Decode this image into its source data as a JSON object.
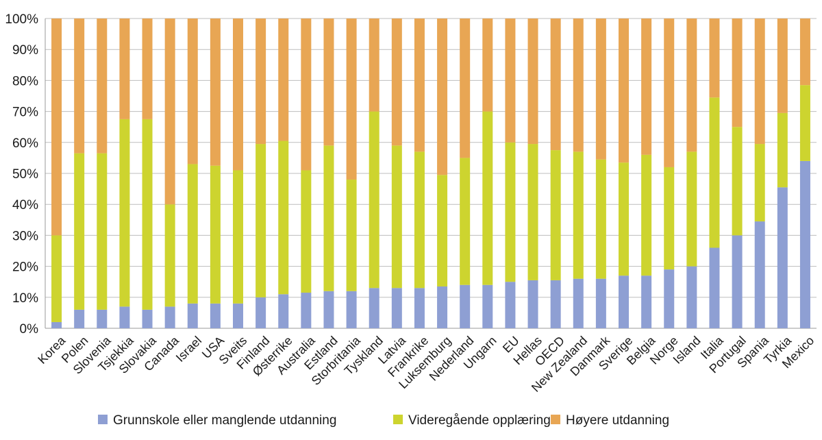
{
  "chart_data": {
    "type": "bar",
    "stacked": true,
    "title": "",
    "xlabel": "",
    "ylabel": "",
    "ylim": [
      0,
      100
    ],
    "yticks": [
      "0%",
      "10%",
      "20%",
      "30%",
      "40%",
      "50%",
      "60%",
      "70%",
      "80%",
      "90%",
      "100%"
    ],
    "grid": true,
    "legend_position": "bottom",
    "categories": [
      "Korea",
      "Polen",
      "Slovenia",
      "Tsjekkia",
      "Slovakia",
      "Canada",
      "Israel",
      "USA",
      "Sveits",
      "Finland",
      "Østerrike",
      "Australia",
      "Estland",
      "Storbritania",
      "Tyskland",
      "Latvia",
      "Frankrike",
      "Luksemburg",
      "Nederland",
      "Ungarn",
      "EU",
      "Hellas",
      "OECD",
      "New Zealand",
      "Danmark",
      "Sverige",
      "Belgia",
      "Norge",
      "Island",
      "Italia",
      "Portugal",
      "Spania",
      "Tyrkia",
      "Mexico"
    ],
    "series": [
      {
        "name": "Grunnskole eller manglende utdanning",
        "color": "#8e9fd3",
        "values": [
          2,
          6,
          6,
          7,
          6,
          7,
          8,
          8,
          8,
          10,
          11,
          11.5,
          12,
          12,
          13,
          13,
          13,
          13.5,
          14,
          14,
          15,
          15.5,
          15.5,
          16,
          16,
          17,
          17,
          19,
          20,
          26,
          30,
          34.5,
          45.5,
          54
        ]
      },
      {
        "name": "Videregående opplæring",
        "color": "#cdd42f",
        "values": [
          28,
          50.5,
          50.5,
          60.5,
          61.5,
          33,
          45,
          44.5,
          43,
          49.5,
          49.5,
          39.5,
          47,
          36,
          57,
          46,
          44,
          36,
          41,
          56,
          45,
          44,
          42,
          41,
          38.5,
          36.5,
          39,
          33,
          37,
          48.5,
          35,
          25,
          24,
          24.5
        ]
      },
      {
        "name": "Høyere utdanning",
        "color": "#e8a654",
        "values": [
          70,
          43.5,
          43.5,
          32.5,
          32.5,
          60,
          47,
          47.5,
          49,
          40.5,
          39.5,
          49,
          41,
          52,
          30,
          41,
          43,
          50.5,
          45,
          30,
          40,
          40.5,
          42.5,
          43,
          45.5,
          46.5,
          44,
          48,
          43,
          25.5,
          35,
          40.5,
          30.5,
          21.5
        ]
      }
    ]
  }
}
